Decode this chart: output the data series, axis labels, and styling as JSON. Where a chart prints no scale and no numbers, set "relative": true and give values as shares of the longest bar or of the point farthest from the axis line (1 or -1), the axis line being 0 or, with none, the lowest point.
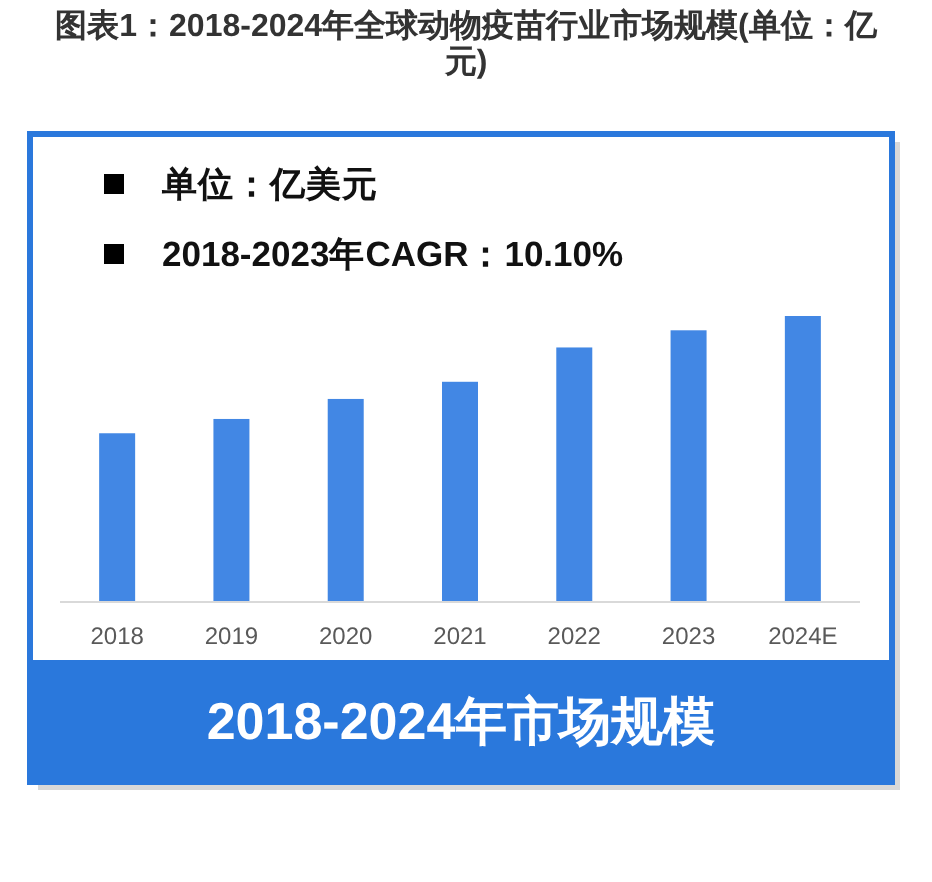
{
  "chart_data": {
    "type": "bar",
    "title": "图表1：2018-2024年全球动物疫苗行业市场规模(单位：亿元)",
    "xlabel": "2018-2024年市场规模",
    "annotations": [
      "单位：亿美元",
      "2018-2023年CAGR：10.10%"
    ],
    "categories": [
      "2018",
      "2019",
      "2020",
      "2021",
      "2022",
      "2023",
      "2024E"
    ],
    "values": [
      0.59,
      0.64,
      0.71,
      0.77,
      0.89,
      0.95,
      1
    ],
    "color": "#4287e4",
    "relative": true
  }
}
